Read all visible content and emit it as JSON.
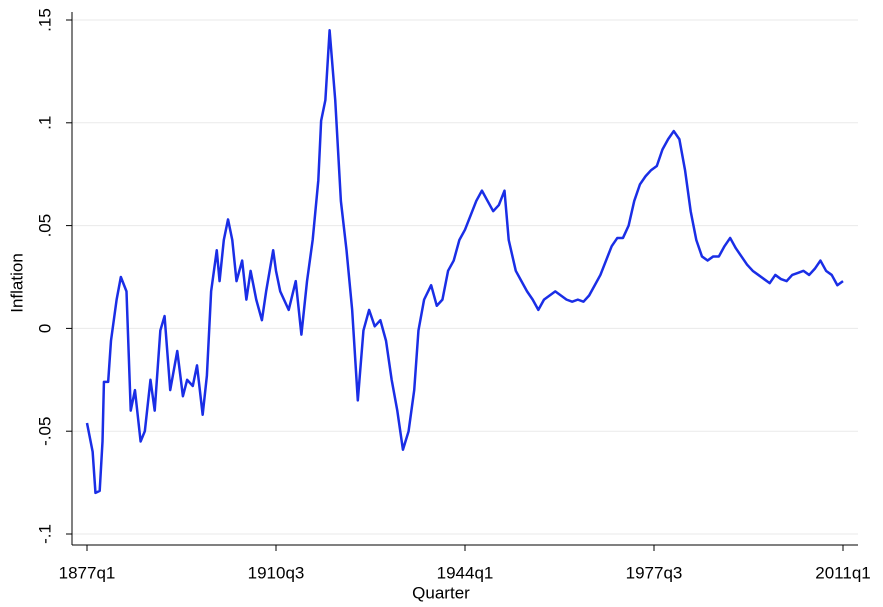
{
  "chart_data": {
    "type": "line",
    "x_label": "Quarter",
    "y_label": "Inflation",
    "x": [
      "1877q1",
      "1878q1",
      "1878q3",
      "1879q2",
      "1879q4",
      "1880q1",
      "1880q4",
      "1881q2",
      "1882q2",
      "1883q1",
      "1884q1",
      "1884q4",
      "1885q3",
      "1886q3",
      "1887q2",
      "1888q2",
      "1889q1",
      "1890q1",
      "1890q4",
      "1891q4",
      "1893q1",
      "1894q1",
      "1894q4",
      "1895q4",
      "1896q3",
      "1897q3",
      "1898q2",
      "1899q1",
      "1900q1",
      "1900q3",
      "1901q2",
      "1902q1",
      "1902q4",
      "1903q3",
      "1904q3",
      "1905q2",
      "1906q1",
      "1907q1",
      "1908q1",
      "1908q4",
      "1910q1",
      "1910q3",
      "1911q2",
      "1912q4",
      "1914q1",
      "1915q1",
      "1916q1",
      "1917q1",
      "1918q1",
      "1918q3",
      "1919q2",
      "1920q1",
      "1921q1",
      "1922q1",
      "1923q1",
      "1924q1",
      "1925q1",
      "1926q1",
      "1927q1",
      "1928q1",
      "1929q1",
      "1930q1",
      "1931q1",
      "1932q1",
      "1933q1",
      "1934q1",
      "1935q1",
      "1935q4",
      "1936q4",
      "1938q1",
      "1939q1",
      "1940q1",
      "1941q1",
      "1942q1",
      "1943q1",
      "1944q1",
      "1945q1",
      "1946q1",
      "1947q1",
      "1948q1",
      "1949q1",
      "1950q1",
      "1951q1",
      "1951q4",
      "1953q1",
      "1954q1",
      "1955q1",
      "1956q1",
      "1957q1",
      "1958q1",
      "1959q1",
      "1960q1",
      "1961q1",
      "1962q1",
      "1963q1",
      "1964q1",
      "1965q1",
      "1966q1",
      "1967q1",
      "1968q1",
      "1969q1",
      "1970q1",
      "1971q1",
      "1972q1",
      "1973q1",
      "1974q1",
      "1975q1",
      "1976q1",
      "1977q1",
      "1978q1",
      "1979q1",
      "1980q1",
      "1981q1",
      "1982q1",
      "1983q1",
      "1984q1",
      "1985q1",
      "1986q1",
      "1987q1",
      "1988q1",
      "1989q1",
      "1990q1",
      "1991q1",
      "1992q1",
      "1993q1",
      "1994q1",
      "1995q1",
      "1996q1",
      "1997q1",
      "1998q1",
      "1999q1",
      "2000q1",
      "2001q1",
      "2002q1",
      "2003q1",
      "2004q1",
      "2005q1",
      "2006q1",
      "2007q1",
      "2008q1",
      "2009q1",
      "2010q1",
      "2011q1"
    ],
    "series": [
      {
        "name": "Inflation",
        "color": "#1a2ee6",
        "values": [
          -0.046,
          -0.06,
          -0.08,
          -0.079,
          -0.055,
          -0.026,
          -0.026,
          -0.006,
          0.014,
          0.025,
          0.018,
          -0.04,
          -0.03,
          -0.055,
          -0.05,
          -0.025,
          -0.04,
          -0.001,
          0.006,
          -0.03,
          -0.011,
          -0.033,
          -0.025,
          -0.028,
          -0.018,
          -0.042,
          -0.023,
          0.018,
          0.038,
          0.023,
          0.043,
          0.053,
          0.043,
          0.023,
          0.033,
          0.014,
          0.028,
          0.014,
          0.004,
          0.018,
          0.038,
          0.028,
          0.018,
          0.009,
          0.023,
          -0.003,
          0.023,
          0.043,
          0.072,
          0.101,
          0.111,
          0.145,
          0.111,
          0.062,
          0.038,
          0.009,
          -0.035,
          -0.001,
          0.009,
          0.001,
          0.004,
          -0.006,
          -0.025,
          -0.04,
          -0.059,
          -0.05,
          -0.03,
          -0.001,
          0.014,
          0.021,
          0.011,
          0.014,
          0.028,
          0.033,
          0.043,
          0.048,
          0.055,
          0.062,
          0.067,
          0.062,
          0.057,
          0.06,
          0.067,
          0.043,
          0.028,
          0.023,
          0.018,
          0.014,
          0.009,
          0.014,
          0.016,
          0.018,
          0.016,
          0.014,
          0.013,
          0.014,
          0.013,
          0.016,
          0.021,
          0.026,
          0.033,
          0.04,
          0.044,
          0.044,
          0.05,
          0.062,
          0.07,
          0.074,
          0.077,
          0.079,
          0.087,
          0.092,
          0.096,
          0.092,
          0.077,
          0.057,
          0.043,
          0.035,
          0.033,
          0.035,
          0.035,
          0.04,
          0.044,
          0.039,
          0.035,
          0.031,
          0.028,
          0.026,
          0.024,
          0.022,
          0.026,
          0.024,
          0.023,
          0.026,
          0.027,
          0.028,
          0.026,
          0.029,
          0.033,
          0.028,
          0.026,
          0.021,
          0.023
        ]
      }
    ],
    "xlim": [
      "1877q1",
      "2011q1"
    ],
    "xticks": [
      "1877q1",
      "1910q3",
      "1944q1",
      "1977q3",
      "2011q1"
    ],
    "ylim": [
      -0.1,
      0.15
    ],
    "yticks": [
      {
        "value": -0.1,
        "label": "-.1"
      },
      {
        "value": -0.05,
        "label": "-.05"
      },
      0,
      {
        "value": 0.05,
        "label": ".05"
      },
      {
        "value": 0.1,
        "label": ".1"
      },
      {
        "value": 0.15,
        "label": ".15"
      }
    ],
    "grid": true
  }
}
